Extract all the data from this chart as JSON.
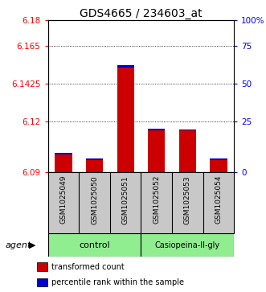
{
  "title": "GDS4665 / 234603_at",
  "samples": [
    "GSM1025049",
    "GSM1025050",
    "GSM1025051",
    "GSM1025052",
    "GSM1025053",
    "GSM1025054"
  ],
  "bar_bottoms": 6.09,
  "bar_tops_red": [
    6.1005,
    6.097,
    6.152,
    6.115,
    6.115,
    6.097
  ],
  "bar_tops_blue": [
    6.1015,
    6.098,
    6.1535,
    6.116,
    6.1155,
    6.098
  ],
  "ylim": [
    6.09,
    6.18
  ],
  "yticks_left": [
    6.09,
    6.12,
    6.1425,
    6.165,
    6.18
  ],
  "yticks_left_labels": [
    "6.09",
    "6.12",
    "6.1425",
    "6.165",
    "6.18"
  ],
  "yticks_right": [
    0,
    25,
    50,
    75,
    100
  ],
  "yticks_right_vals": [
    6.09,
    6.12,
    6.1425,
    6.165,
    6.18
  ],
  "yticks_right_labels": [
    "0",
    "25",
    "50",
    "75",
    "100%"
  ],
  "bar_color_red": "#cc0000",
  "bar_color_blue": "#0000cc",
  "bar_width": 0.55,
  "legend_items": [
    "transformed count",
    "percentile rank within the sample"
  ],
  "legend_colors": [
    "#cc0000",
    "#0000cc"
  ],
  "background_label": "#c8c8c8",
  "background_group": "#90EE90",
  "control_count": 3,
  "casio_count": 3
}
